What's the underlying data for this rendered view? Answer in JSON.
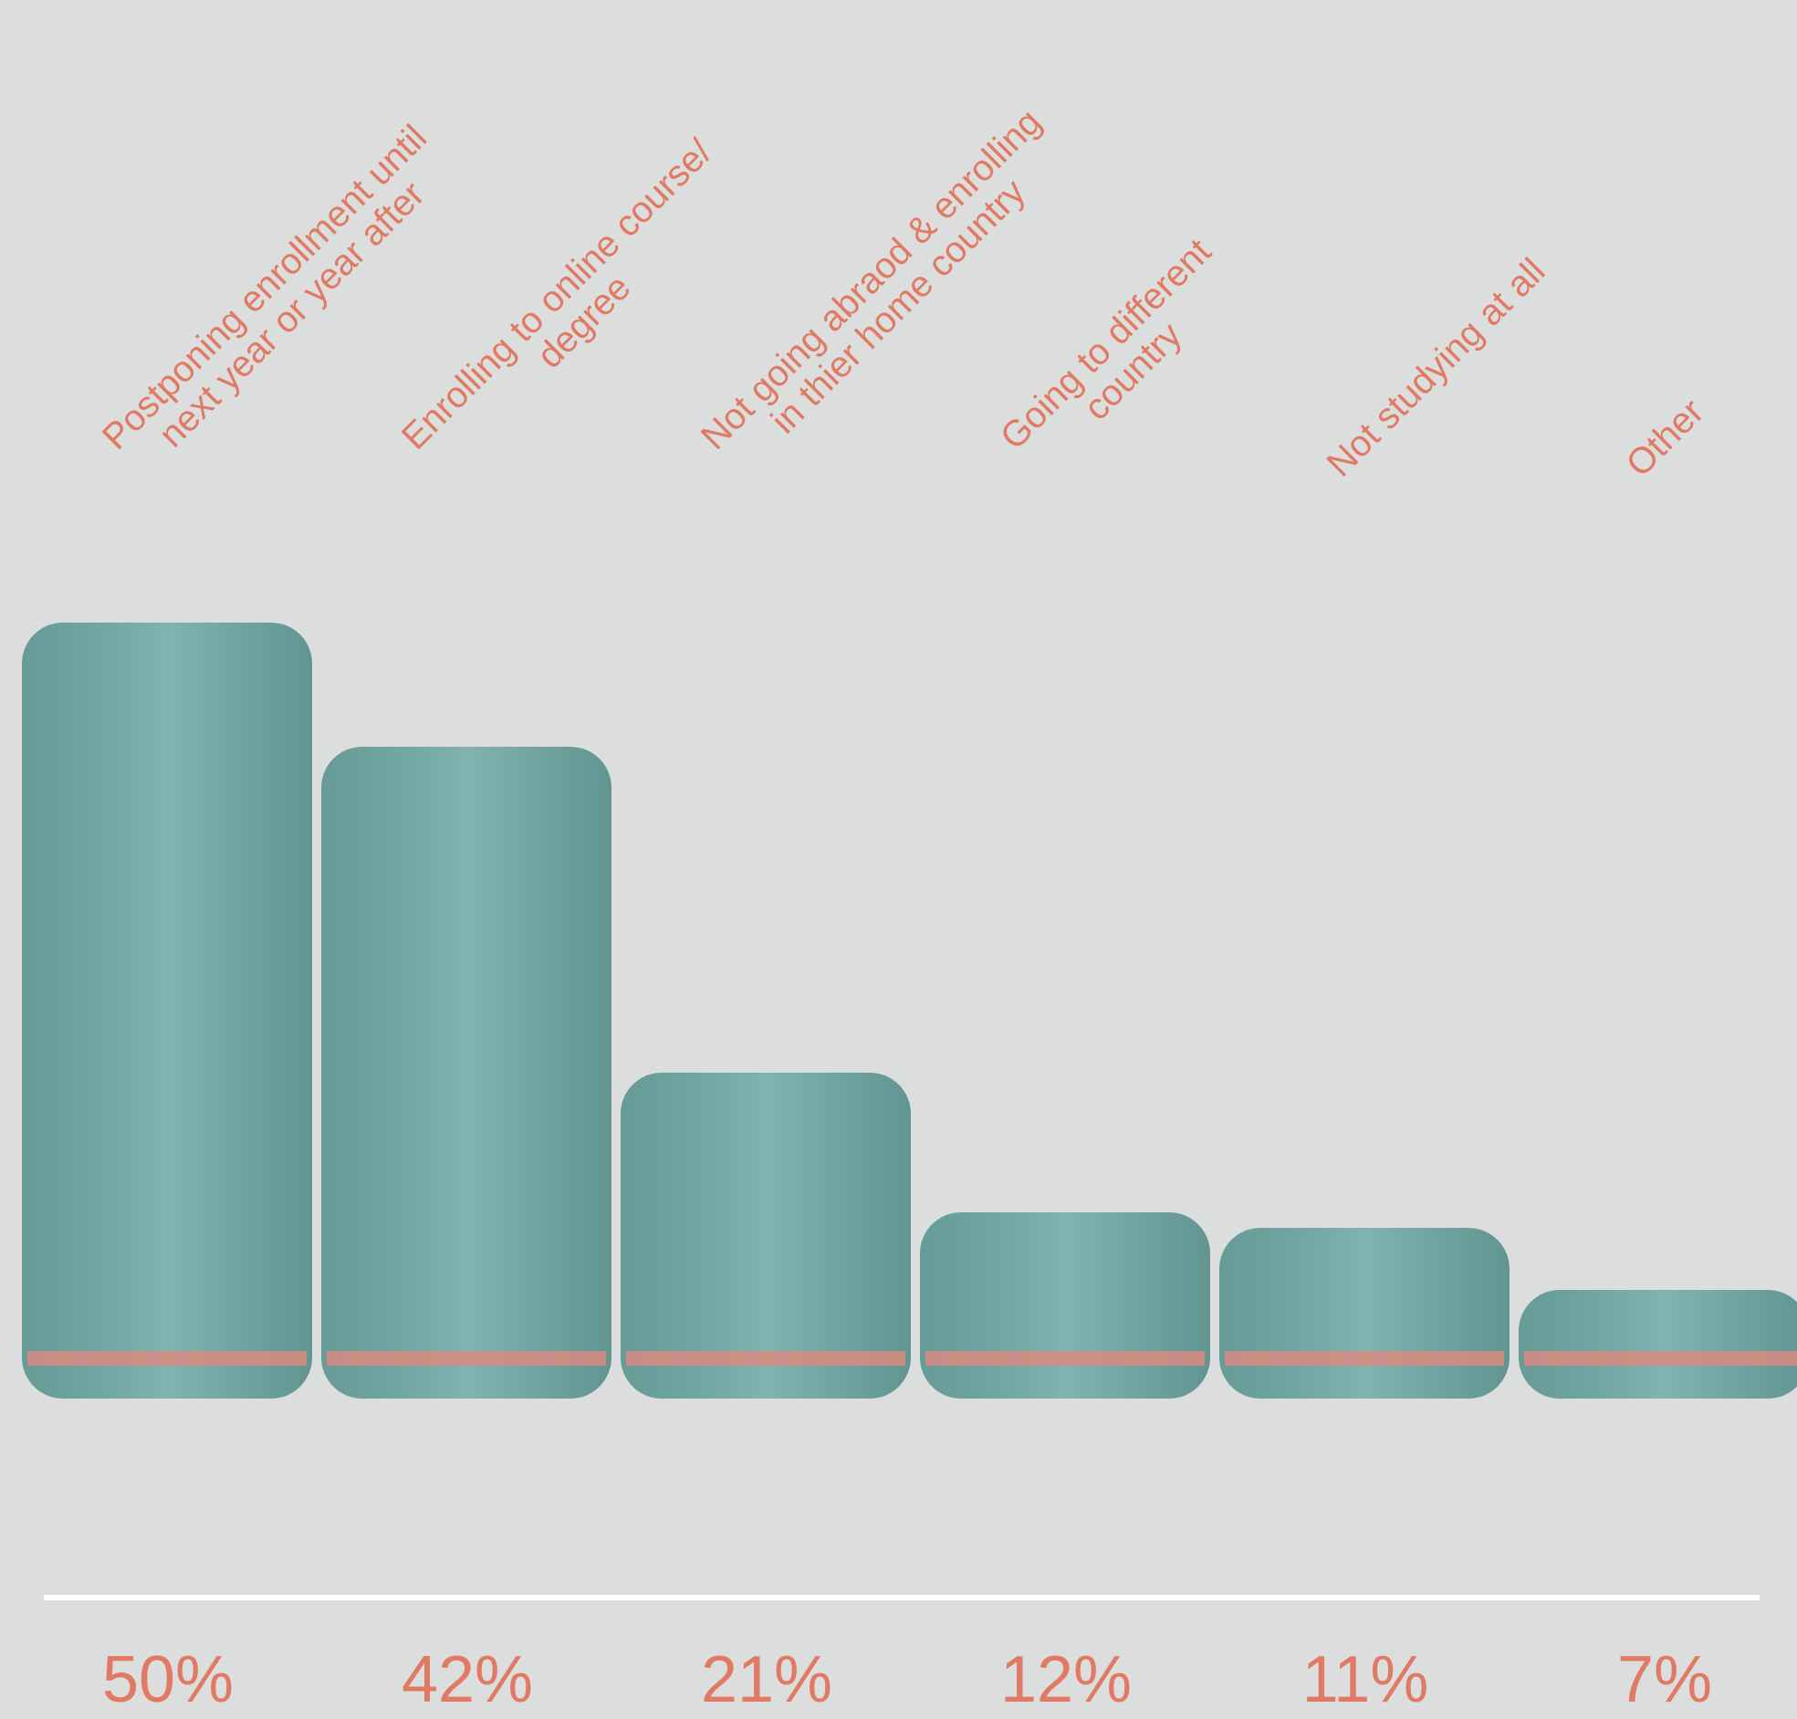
{
  "chart_data": {
    "type": "bar",
    "categories": [
      "Postponing enrollment until\nnext year or year after",
      "Enrolling to online course/\ndegree",
      "Not going abraod & enrolling\nin thier home country",
      "Going to different\ncountry",
      "Not studying at all",
      "Other"
    ],
    "values": [
      50,
      42,
      21,
      12,
      11,
      7
    ],
    "value_labels": [
      "50%",
      "42%",
      "21%",
      "12%",
      "11%",
      "7%"
    ],
    "color": "#6fa9a5",
    "label_color": "#e07a64"
  }
}
